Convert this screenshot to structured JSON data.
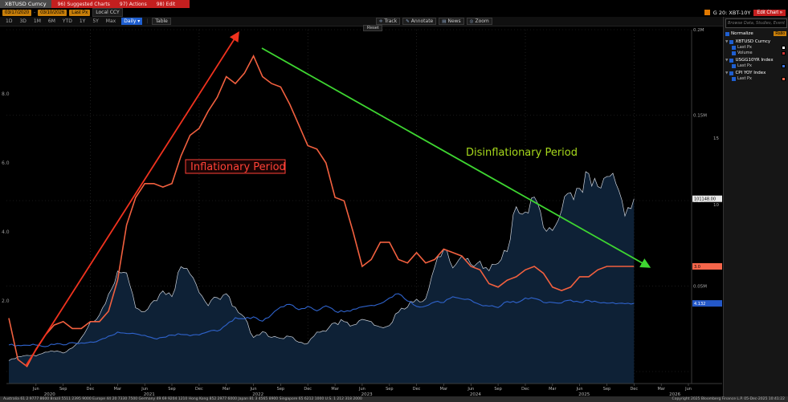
{
  "topbar": {
    "ticker_tab": "XBTUSD Curncy",
    "menus": [
      "96) Suggested Charts",
      "97) Actions",
      "98) Edit"
    ]
  },
  "row2": {
    "start_date": "03/17/2020",
    "end_date": "03/10/2026",
    "field": "Last Px",
    "currency": "Local CCY",
    "chart_title": "G 20: XBT-10Y",
    "edit_chart": "Edit Chart »"
  },
  "toolbar": {
    "ranges": [
      "1D",
      "3D",
      "1M",
      "6M",
      "YTD",
      "1Y",
      "5Y",
      "Max"
    ],
    "period": "Daily ▾",
    "table_label": "Table",
    "tools": [
      "Track",
      "Annotate",
      "News",
      "Zoom"
    ],
    "reset_label": "Reset"
  },
  "panel": {
    "search_placeholder": "Browse Data, Studies, Events, etc",
    "normalize_label": "Normalize",
    "normalize_mode": "Ratio",
    "series": [
      {
        "name": "XBTUSD Curncy",
        "children": [
          {
            "label": "Last Px",
            "color": "#ffffff"
          },
          {
            "label": "Volume",
            "color": "#cc3333"
          }
        ]
      },
      {
        "name": "USGG10YR Index",
        "children": [
          {
            "label": "Last Px",
            "color": "#3a6fd8"
          }
        ]
      },
      {
        "name": "CPI YOY Index",
        "children": [
          {
            "label": "Last Px",
            "color": "#f4654a"
          }
        ]
      }
    ]
  },
  "chart_data": {
    "type": "line",
    "title": "G 20: XBT-10Y",
    "x_start": "2020-03",
    "x_end_data": "2025-12",
    "x_axis": {
      "tick_start_month": 3,
      "tick_step": 3,
      "tick_count": 25,
      "tick_cycle": [
        "Jun",
        "Sep",
        "Dec",
        "Mar"
      ],
      "years": [
        {
          "label": "2020",
          "m": 4.5
        },
        {
          "label": "2021",
          "m": 15.5
        },
        {
          "label": "2022",
          "m": 27.5
        },
        {
          "label": "2023",
          "m": 39.5
        },
        {
          "label": "2024",
          "m": 51.5
        },
        {
          "label": "2025",
          "m": 63.5
        },
        {
          "label": "2026",
          "m": 73.5
        }
      ]
    },
    "left_axis": {
      "ticks": [
        {
          "label": "8.0",
          "value": 8.0
        },
        {
          "label": "6.0",
          "value": 6.0
        },
        {
          "label": "4.0",
          "value": 4.0
        },
        {
          "label": "2.0",
          "value": 2.0
        }
      ]
    },
    "right_axis_price": {
      "ticks": [
        {
          "label": "0.2M",
          "value_k": 200
        },
        {
          "label": "0.15M",
          "value_k": 150
        },
        {
          "label": "0.1M",
          "value_k": 100
        },
        {
          "label": "0.05M",
          "value_k": 50
        }
      ]
    },
    "right_axis_pct": {
      "ticks": [
        {
          "label": "15",
          "y": 174
        },
        {
          "label": "10",
          "y": 257
        }
      ]
    },
    "badges": [
      {
        "text": "101148.00",
        "axis": "btc",
        "value": 101.1,
        "bg": "#e8e8e8",
        "fg": "#000000"
      },
      {
        "text": "3.0",
        "axis": "cpi",
        "value": 3.0,
        "bg": "#f4654a",
        "fg": "#000000"
      },
      {
        "text": "4.132",
        "axis": "yld",
        "value": 4.13,
        "bg": "#2458c8",
        "fg": "#ffffff"
      }
    ],
    "annotations": [
      {
        "text": "Inflationary Period",
        "color": "#ff4136",
        "boxed": true
      },
      {
        "text": "Disinflationary Period",
        "color": "#a6d81c",
        "boxed": false
      }
    ],
    "arrows": [
      {
        "name": "inflation-arrow",
        "color": "#f0321e"
      },
      {
        "name": "disinflation-arrow",
        "color": "#3ed631"
      }
    ],
    "series": [
      {
        "name": "XBTUSD Curncy - Last Px",
        "type": "area",
        "axis": "price_usd_k",
        "stroke": "#cdd3dc",
        "fill": "#0e2136",
        "values": [
          6.4,
          8.6,
          9.5,
          9.1,
          11.3,
          11.7,
          10.8,
          13.8,
          19.7,
          29.0,
          33.1,
          45.2,
          58.8,
          57.7,
          37.3,
          35.0,
          41.5,
          47.2,
          43.8,
          61.3,
          57.0,
          46.2,
          38.5,
          43.2,
          45.5,
          37.6,
          31.8,
          19.9,
          23.3,
          20.0,
          19.4,
          20.5,
          17.2,
          16.5,
          23.1,
          23.5,
          28.5,
          29.2,
          27.2,
          30.5,
          29.2,
          26.0,
          26.9,
          34.7,
          37.7,
          42.3,
          42.6,
          61.2,
          71.3,
          60.6,
          67.5,
          62.7,
          64.6,
          58.9,
          63.3,
          70.2,
          96.4,
          93.4,
          102.1,
          84.4,
          82.5,
          94.2,
          104.6,
          107.1,
          115.8,
          108.2,
          114.1,
          109.9,
          91.0,
          101.1
        ]
      },
      {
        "name": "CPI YOY Index - Last Px",
        "type": "line",
        "axis": "percent_cpi",
        "stroke": "#f2603f",
        "values": [
          1.5,
          0.3,
          0.1,
          0.6,
          1.0,
          1.3,
          1.4,
          1.2,
          1.2,
          1.4,
          1.4,
          1.7,
          2.6,
          4.2,
          5.0,
          5.4,
          5.4,
          5.3,
          5.4,
          6.2,
          6.8,
          7.0,
          7.5,
          7.9,
          8.5,
          8.3,
          8.6,
          9.1,
          8.5,
          8.3,
          8.2,
          7.7,
          7.1,
          6.5,
          6.4,
          6.0,
          5.0,
          4.9,
          4.0,
          3.0,
          3.2,
          3.7,
          3.7,
          3.2,
          3.1,
          3.4,
          3.1,
          3.2,
          3.5,
          3.4,
          3.3,
          3.0,
          2.9,
          2.5,
          2.4,
          2.6,
          2.7,
          2.9,
          3.0,
          2.8,
          2.4,
          2.3,
          2.4,
          2.7,
          2.7,
          2.9,
          3.0,
          3.0,
          3.0,
          3.0
        ]
      },
      {
        "name": "USGG10YR Index - Last Px",
        "type": "line",
        "axis": "percent_yield",
        "stroke": "#2f63cc",
        "values": [
          0.67,
          0.64,
          0.65,
          0.66,
          0.53,
          0.71,
          0.68,
          0.87,
          0.84,
          0.92,
          1.07,
          1.41,
          1.74,
          1.63,
          1.59,
          1.47,
          1.22,
          1.31,
          1.49,
          1.55,
          1.44,
          1.51,
          1.78,
          1.83,
          2.34,
          2.94,
          2.85,
          3.01,
          2.65,
          3.19,
          3.83,
          4.05,
          3.61,
          3.87,
          3.51,
          3.92,
          3.47,
          3.42,
          3.64,
          3.84,
          3.96,
          4.11,
          4.57,
          4.93,
          4.33,
          3.88,
          3.91,
          4.25,
          4.2,
          4.68,
          4.5,
          4.4,
          4.03,
          3.9,
          3.78,
          4.28,
          4.17,
          4.57,
          4.54,
          4.21,
          4.21,
          4.16,
          4.4,
          4.23,
          4.37,
          4.23,
          4.15,
          4.09,
          4.1,
          4.13
        ]
      }
    ]
  },
  "statusbar": {
    "left": "Australia 61 2 9777 8600  Brazil 5511 2395 9000  Europe 44 20 7330 7500  Germany 49 69 9204 1210  Hong Kong 852 2977 6000  Japan 81 3 4565 8900  Singapore 65 6212 1000  U.S. 1 212 318 2000",
    "right": "Copyright 2025 Bloomberg Finance L.P.   05-Dec-2025 10:41:22"
  }
}
